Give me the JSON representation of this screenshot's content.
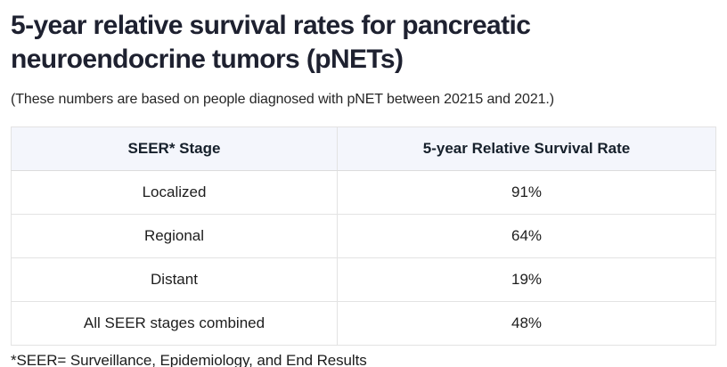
{
  "page": {
    "title_lines": [
      "5-year relative survival rates for pancreatic",
      "neuroendocrine tumors (pNETs)"
    ],
    "subtitle": "(These numbers are based on people diagnosed with pNET between 20215 and 2021.)",
    "footnote": "*SEER= Surveillance, Epidemiology, and End Results"
  },
  "table": {
    "columns": [
      "SEER* Stage",
      "5-year Relative Survival Rate"
    ],
    "rows": [
      {
        "stage": "Localized",
        "rate": "91%"
      },
      {
        "stage": "Regional",
        "rate": "64%"
      },
      {
        "stage": "Distant",
        "rate": "19%"
      },
      {
        "stage": "All SEER stages combined",
        "rate": "48%"
      }
    ]
  },
  "colors": {
    "header_background": "#f4f6fc",
    "outer_border": "#c6c6c6",
    "inner_border": "#e3e3e3",
    "title_text": "#1e2130",
    "body_text": "#1d1d1d"
  }
}
